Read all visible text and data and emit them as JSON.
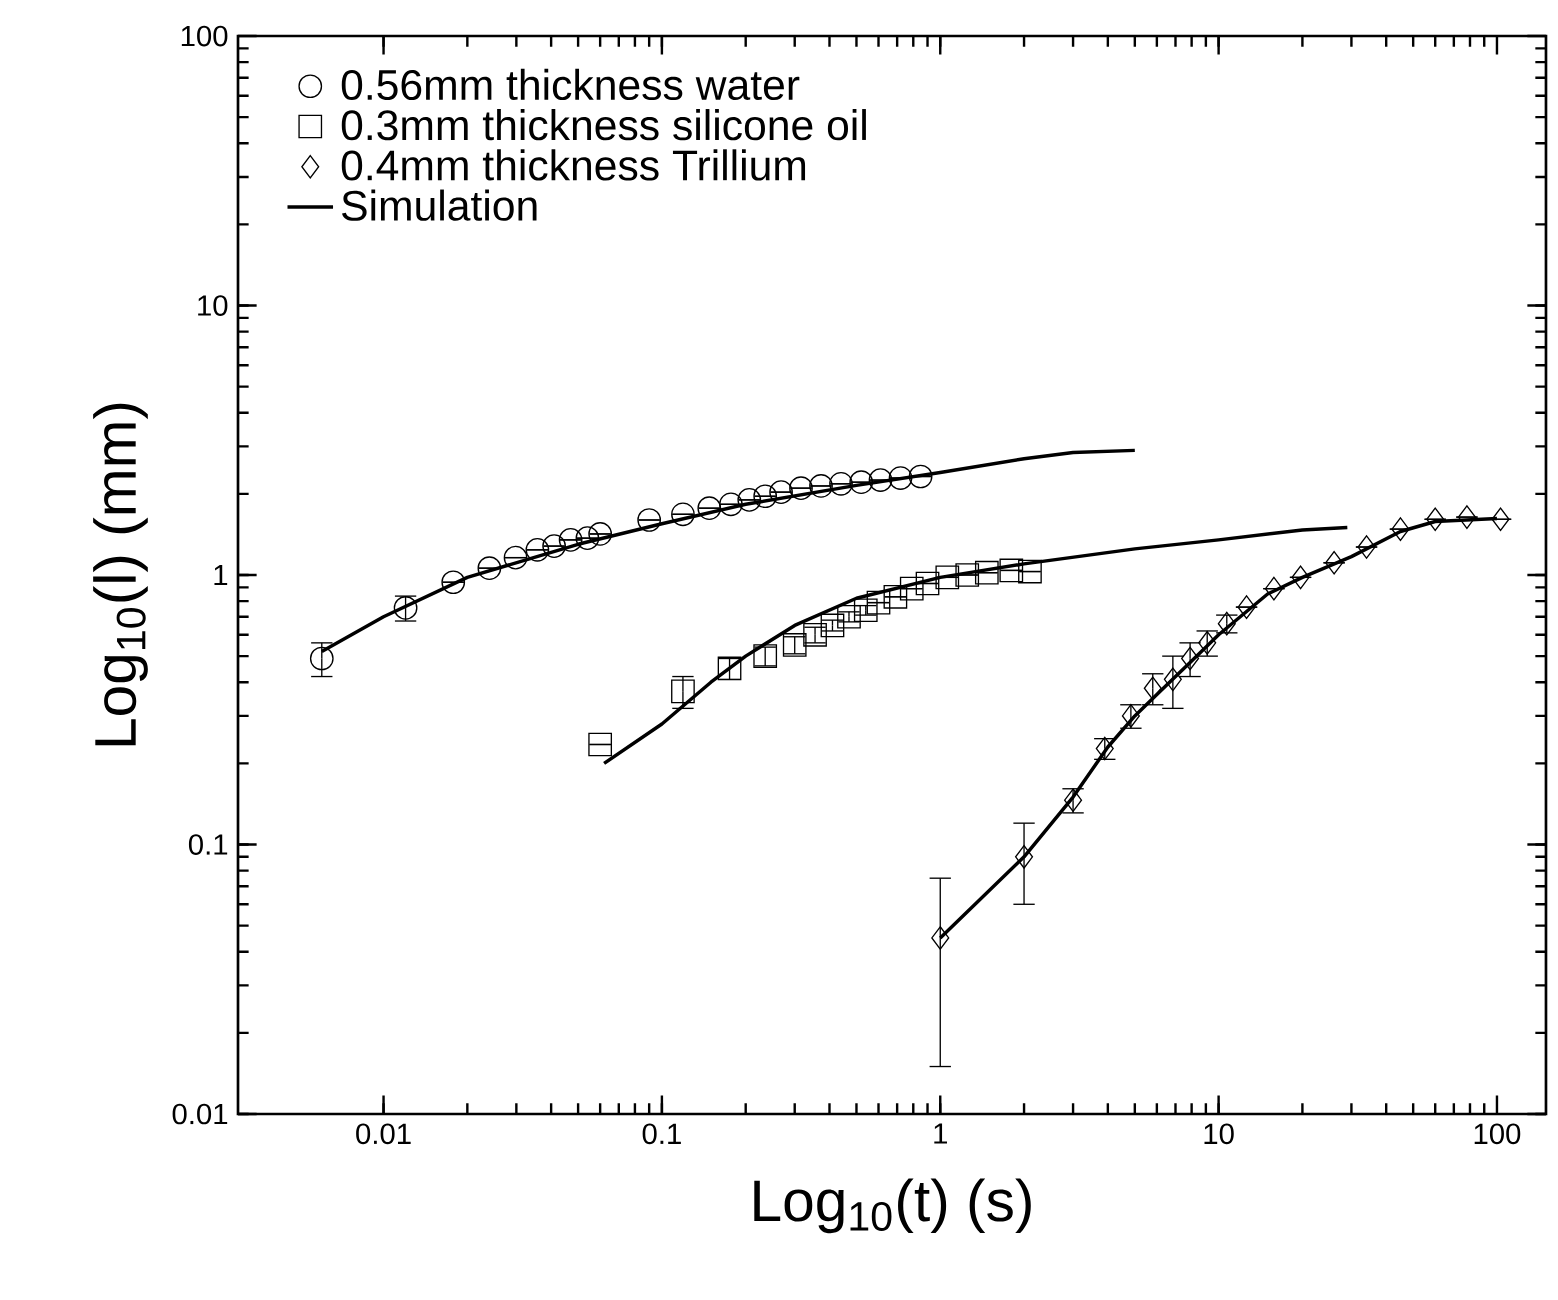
{
  "chart_data": {
    "type": "scatter",
    "xlabel": "Log$_{10}$(t) (s)",
    "ylabel": "Log$_{10}$(l) (mm)",
    "log": "xy",
    "xlim": [
      0.003,
      150
    ],
    "ylim": [
      0.01,
      100
    ],
    "xticks": [
      0.01,
      0.1,
      1,
      10,
      100
    ],
    "yticks": [
      0.01,
      0.1,
      1,
      10,
      100
    ],
    "legend": "top left",
    "grid": false,
    "series": [
      {
        "name": "0.56mm thickness water",
        "marker": "circle",
        "color": "#000000",
        "x": [
          0.006,
          0.012,
          0.0178,
          0.024,
          0.0298,
          0.0357,
          0.041,
          0.047,
          0.054,
          0.06,
          0.09,
          0.119,
          0.148,
          0.177,
          0.206,
          0.235,
          0.268,
          0.316,
          0.373,
          0.44,
          0.52,
          0.61,
          0.72,
          0.85
        ],
        "values": [
          0.49,
          0.755,
          0.94,
          1.06,
          1.16,
          1.24,
          1.28,
          1.35,
          1.37,
          1.42,
          1.6,
          1.68,
          1.77,
          1.83,
          1.9,
          1.96,
          2.03,
          2.1,
          2.14,
          2.18,
          2.21,
          2.25,
          2.29,
          2.32
        ],
        "errors": [
          0.07,
          0.08,
          null,
          null,
          null,
          null,
          null,
          null,
          null,
          null,
          null,
          null,
          null,
          null,
          null,
          null,
          null,
          null,
          null,
          null,
          null,
          null,
          null,
          null
        ]
      },
      {
        "name": "0.3mm thickness silicone oil",
        "marker": "square",
        "color": "#000000",
        "x": [
          0.06,
          0.119,
          0.175,
          0.235,
          0.3,
          0.355,
          0.41,
          0.47,
          0.54,
          0.6,
          0.69,
          0.79,
          0.9,
          1.06,
          1.25,
          1.47,
          1.8,
          2.1
        ],
        "values": [
          0.235,
          0.37,
          0.45,
          0.5,
          0.55,
          0.6,
          0.65,
          0.7,
          0.74,
          0.79,
          0.83,
          0.89,
          0.93,
          0.98,
          1.0,
          1.02,
          1.04,
          1.03
        ],
        "errors": [
          null,
          0.05,
          0.04,
          0.04,
          0.04,
          0.04,
          0.03,
          0.03,
          0.03,
          null,
          null,
          null,
          null,
          null,
          null,
          null,
          null,
          null
        ]
      },
      {
        "name": "0.4mm thickness Trillium",
        "marker": "diamond",
        "color": "#000000",
        "x": [
          1,
          2,
          3,
          3.9,
          4.84,
          5.8,
          6.85,
          7.9,
          9.1,
          10.7,
          12.6,
          15.8,
          19.7,
          26,
          34,
          45,
          60,
          78,
          103
        ],
        "values": [
          0.045,
          0.09,
          0.146,
          0.227,
          0.3,
          0.38,
          0.41,
          0.49,
          0.56,
          0.66,
          0.76,
          0.89,
          0.98,
          1.11,
          1.27,
          1.48,
          1.61,
          1.64,
          1.61
        ],
        "errors": [
          0.03,
          0.03,
          0.015,
          0.02,
          0.03,
          0.05,
          0.09,
          0.07,
          0.06,
          0.05,
          null,
          null,
          null,
          null,
          null,
          null,
          null,
          null,
          null
        ]
      },
      {
        "name": "Simulation",
        "type": "line",
        "marker": "none",
        "line_style": "solid",
        "color": "#000000",
        "x": [
          0.006,
          0.01,
          0.02,
          0.05,
          0.1,
          0.2,
          0.5,
          1,
          2,
          3,
          5
        ],
        "values": [
          0.52,
          0.7,
          0.98,
          1.3,
          1.55,
          1.83,
          2.15,
          2.4,
          2.7,
          2.85,
          2.9
        ]
      },
      {
        "type": "line",
        "marker": "none",
        "line_style": "solid",
        "color": "#000000",
        "x": [
          0.062,
          0.1,
          0.15,
          0.2,
          0.3,
          0.5,
          1,
          2,
          5,
          10,
          20,
          29
        ],
        "values": [
          0.2,
          0.28,
          0.4,
          0.5,
          0.65,
          0.82,
          0.98,
          1.1,
          1.25,
          1.35,
          1.47,
          1.5
        ]
      },
      {
        "type": "line",
        "marker": "none",
        "line_style": "solid",
        "color": "#000000",
        "x": [
          1,
          2,
          3,
          4,
          5,
          6,
          8,
          10,
          15,
          20,
          30,
          45,
          60,
          100
        ],
        "values": [
          0.045,
          0.09,
          0.15,
          0.23,
          0.3,
          0.36,
          0.48,
          0.6,
          0.85,
          0.98,
          1.17,
          1.45,
          1.58,
          1.62
        ]
      }
    ]
  }
}
